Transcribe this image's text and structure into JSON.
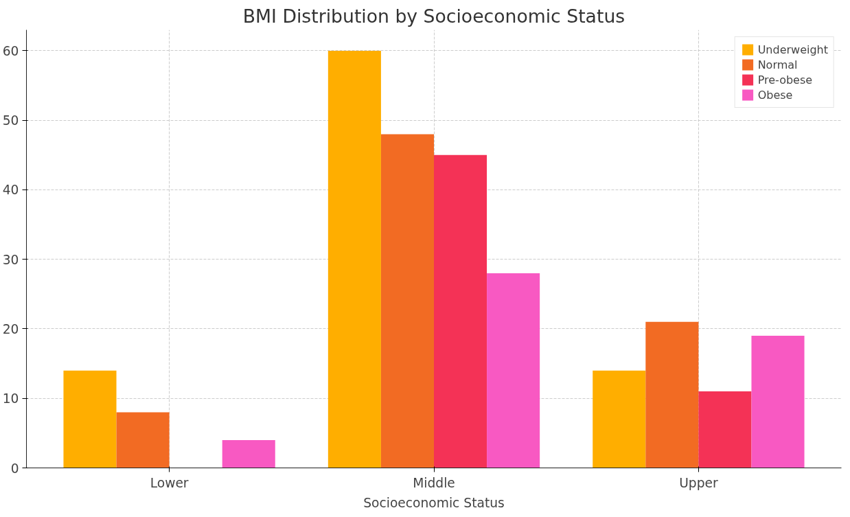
{
  "chart_data": {
    "type": "bar",
    "title": "BMI Distribution by Socioeconomic Status",
    "xlabel": "Socioeconomic Status",
    "categories": [
      "Lower",
      "Middle",
      "Upper"
    ],
    "series": [
      {
        "name": "Underweight",
        "color": "#ffae00",
        "values": [
          14,
          60,
          14
        ]
      },
      {
        "name": "Normal",
        "color": "#f26b23",
        "values": [
          8,
          48,
          21
        ]
      },
      {
        "name": "Pre-obese",
        "color": "#f43256",
        "values": [
          0,
          45,
          11
        ]
      },
      {
        "name": "Obese",
        "color": "#f859c2",
        "values": [
          4,
          28,
          19
        ]
      }
    ],
    "ylim": [
      0,
      63
    ],
    "yticks": [
      0,
      10,
      20,
      30,
      40,
      50,
      60
    ],
    "grid": true,
    "legend": "top right"
  }
}
